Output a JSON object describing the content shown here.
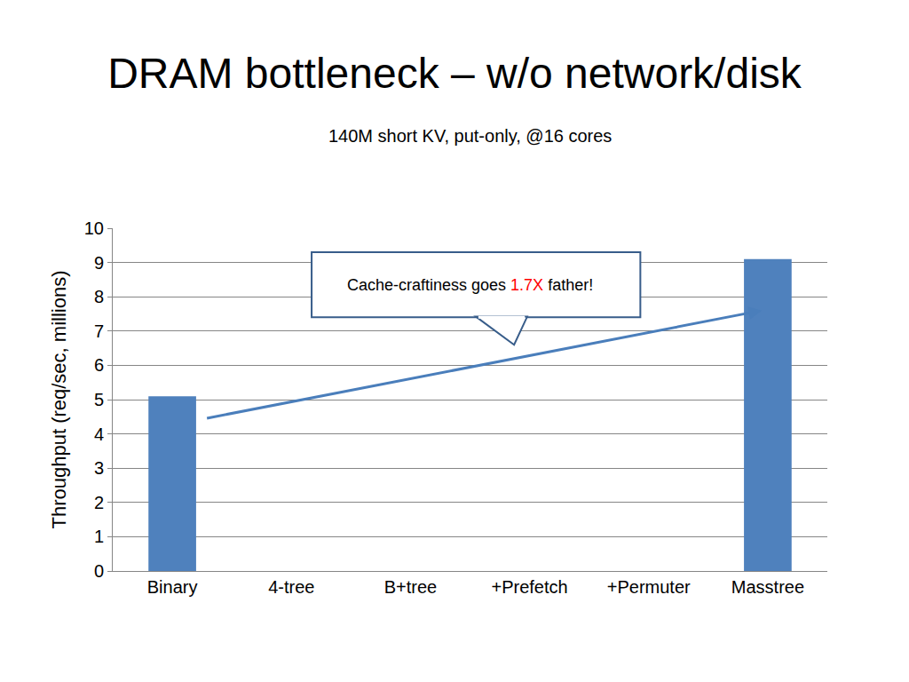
{
  "chart_data": {
    "type": "bar",
    "title": "DRAM bottleneck – w/o network/disk",
    "subtitle": "140M short KV, put-only, @16 cores",
    "y_label": "Throughput (req/sec, millions)",
    "categories": [
      "Binary",
      "4-tree",
      "B+tree",
      "+Prefetch",
      "+Permuter",
      "Masstree"
    ],
    "values": [
      5.1,
      null,
      null,
      null,
      null,
      9.1
    ],
    "color": "#4f81bd",
    "ylim": [
      0,
      10
    ],
    "yticks": [
      0,
      1,
      2,
      3,
      4,
      5,
      6,
      7,
      8,
      9,
      10
    ],
    "grid": true,
    "annotations": [
      {
        "text": "Cache-craftiness goes 1.7X father!",
        "highlight": "1.7X",
        "highlight_color": "#ff0000"
      }
    ]
  }
}
